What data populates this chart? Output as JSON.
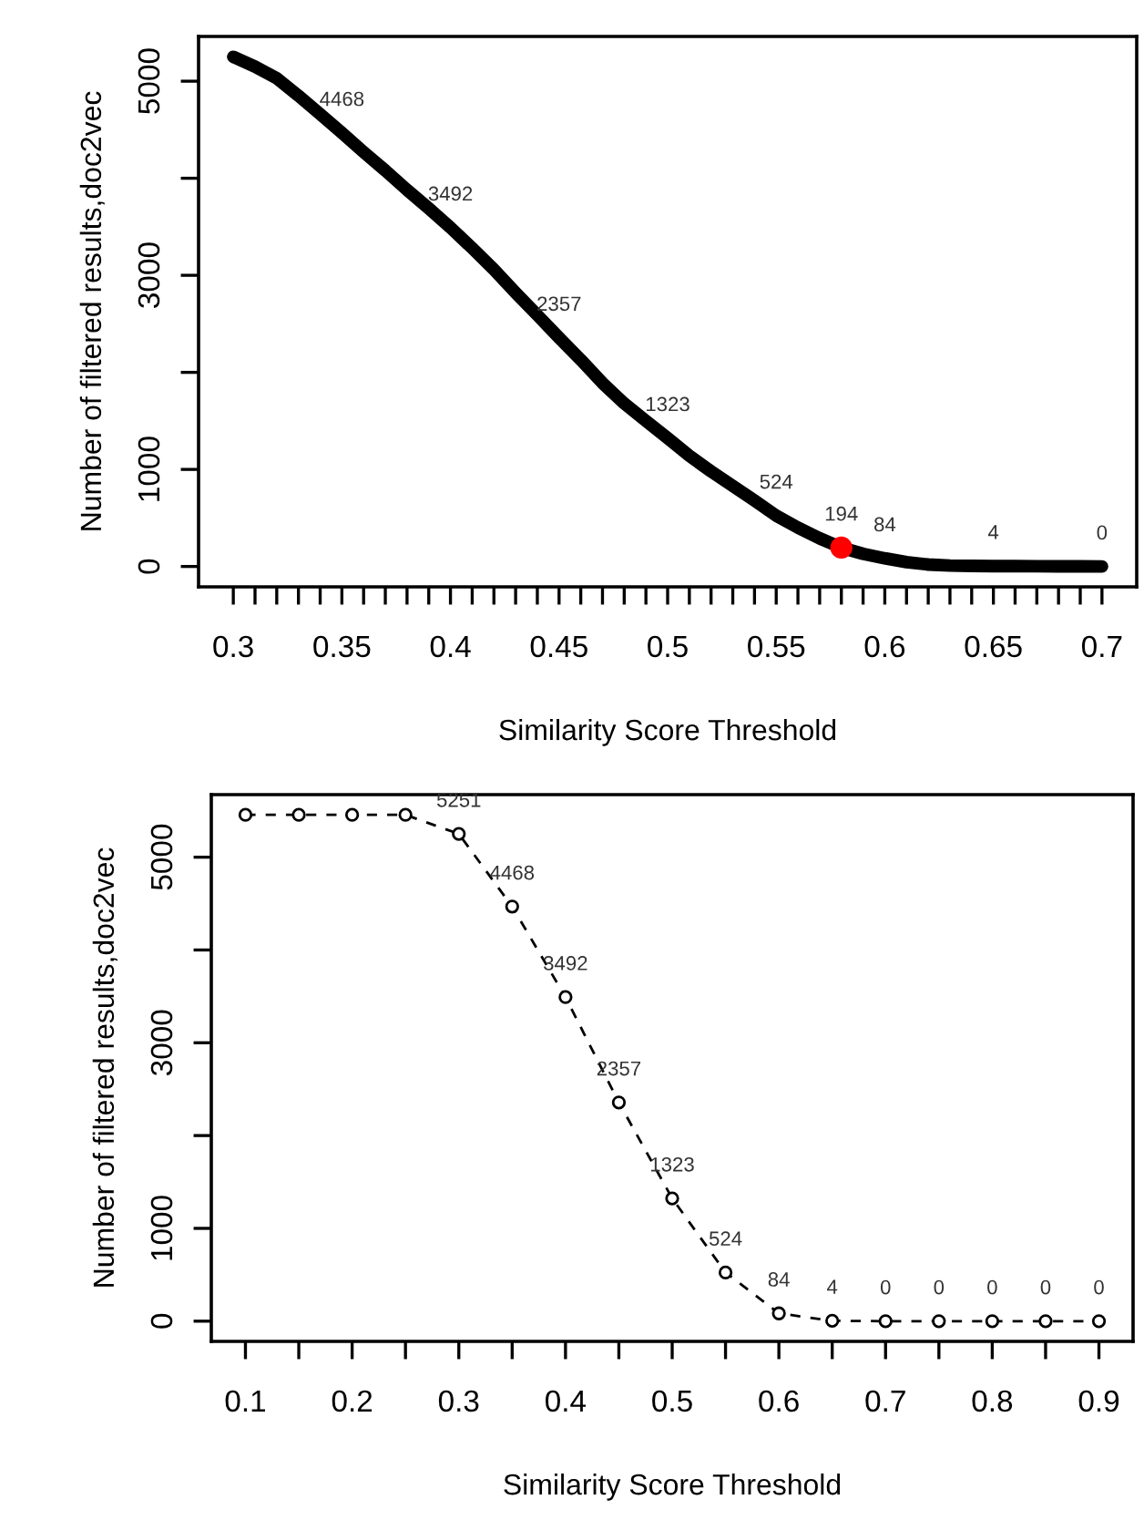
{
  "chart_data": [
    {
      "type": "line",
      "xlabel": "Similarity Score Threshold",
      "ylabel": "Number of filtered results,doc2vec",
      "xlim": [
        0.284,
        0.716
      ],
      "ylim": [
        -210,
        5461
      ],
      "xticks": [
        0.3,
        {
          "value": 0.31,
          "label": null
        },
        {
          "value": 0.32,
          "label": null
        },
        {
          "value": 0.33,
          "label": null
        },
        {
          "value": 0.34,
          "label": null
        },
        0.35,
        {
          "value": 0.36,
          "label": null
        },
        {
          "value": 0.37,
          "label": null
        },
        {
          "value": 0.38,
          "label": null
        },
        {
          "value": 0.39,
          "label": null
        },
        0.4,
        {
          "value": 0.41,
          "label": null
        },
        {
          "value": 0.42,
          "label": null
        },
        {
          "value": 0.43,
          "label": null
        },
        {
          "value": 0.44,
          "label": null
        },
        0.45,
        {
          "value": 0.46,
          "label": null
        },
        {
          "value": 0.47,
          "label": null
        },
        {
          "value": 0.48,
          "label": null
        },
        {
          "value": 0.49,
          "label": null
        },
        0.5,
        {
          "value": 0.51,
          "label": null
        },
        {
          "value": 0.52,
          "label": null
        },
        {
          "value": 0.53,
          "label": null
        },
        {
          "value": 0.54,
          "label": null
        },
        0.55,
        {
          "value": 0.56,
          "label": null
        },
        {
          "value": 0.57,
          "label": null
        },
        {
          "value": 0.58,
          "label": null
        },
        {
          "value": 0.59,
          "label": null
        },
        0.6,
        {
          "value": 0.61,
          "label": null
        },
        {
          "value": 0.62,
          "label": null
        },
        {
          "value": 0.63,
          "label": null
        },
        {
          "value": 0.64,
          "label": null
        },
        0.65,
        {
          "value": 0.66,
          "label": null
        },
        {
          "value": 0.67,
          "label": null
        },
        {
          "value": 0.68,
          "label": null
        },
        {
          "value": 0.69,
          "label": null
        },
        0.7
      ],
      "yticks": [
        0,
        {
          "value": 1000,
          "label": "1000"
        },
        {
          "value": 2000,
          "label": null
        },
        3000,
        {
          "value": 4000,
          "label": null
        },
        5000
      ],
      "series": [
        {
          "type": "line",
          "color": "#000000",
          "x": [
            0.3,
            0.31,
            0.32,
            0.33,
            0.34,
            0.35,
            0.36,
            0.37,
            0.38,
            0.39,
            0.4,
            0.41,
            0.42,
            0.43,
            0.44,
            0.45,
            0.46,
            0.47,
            0.48,
            0.49,
            0.5,
            0.51,
            0.52,
            0.53,
            0.54,
            0.55,
            0.56,
            0.57,
            0.58,
            0.59,
            0.6,
            0.61,
            0.62,
            0.63,
            0.64,
            0.65,
            0.66,
            0.67,
            0.68,
            0.69,
            0.7
          ],
          "values": [
            5251,
            5150,
            5030,
            4850,
            4660,
            4468,
            4270,
            4080,
            3880,
            3690,
            3492,
            3280,
            3060,
            2820,
            2590,
            2357,
            2130,
            1890,
            1680,
            1500,
            1323,
            1140,
            980,
            830,
            680,
            524,
            400,
            290,
            194,
            130,
            84,
            45,
            20,
            10,
            6,
            4,
            3,
            2,
            1,
            1,
            0
          ],
          "value_labels": [
            null,
            null,
            null,
            null,
            null,
            "4468",
            null,
            null,
            null,
            null,
            "3492",
            null,
            null,
            null,
            null,
            "2357",
            null,
            null,
            null,
            null,
            "1323",
            null,
            null,
            null,
            null,
            "524",
            null,
            null,
            null,
            null,
            "84",
            null,
            null,
            null,
            null,
            "4",
            null,
            null,
            null,
            null,
            "0"
          ]
        },
        {
          "type": "scatter",
          "color": "#ff0000",
          "x": [
            0.58
          ],
          "values": [
            194
          ],
          "value_labels": [
            "194"
          ]
        }
      ]
    },
    {
      "type": "line",
      "xlabel": "Similarity Score Threshold",
      "ylabel": "Number of filtered results,doc2vec",
      "xlim": [
        0.068,
        0.932
      ],
      "ylim": [
        -218,
        5674
      ],
      "xticks": [
        0.1,
        {
          "value": 0.15,
          "label": null
        },
        0.2,
        {
          "value": 0.25,
          "label": null
        },
        0.3,
        {
          "value": 0.35,
          "label": null
        },
        0.4,
        {
          "value": 0.45,
          "label": null
        },
        0.5,
        {
          "value": 0.55,
          "label": null
        },
        0.6,
        {
          "value": 0.65,
          "label": null
        },
        0.7,
        {
          "value": 0.75,
          "label": null
        },
        0.8,
        {
          "value": 0.85,
          "label": null
        },
        0.9
      ],
      "yticks": [
        0,
        1000,
        {
          "value": 2000,
          "label": null
        },
        3000,
        {
          "value": 4000,
          "label": null
        },
        5000
      ],
      "marker": "circle",
      "line_style": "dashed",
      "series": [
        {
          "color": "#000000",
          "x": [
            0.1,
            0.15,
            0.2,
            0.25,
            0.3,
            0.35,
            0.4,
            0.45,
            0.5,
            0.55,
            0.6,
            0.65,
            0.7,
            0.75,
            0.8,
            0.85,
            0.9
          ],
          "values": [
            5456,
            5456,
            5456,
            5456,
            5251,
            4468,
            3492,
            2357,
            1323,
            524,
            84,
            4,
            0,
            0,
            0,
            0,
            0
          ],
          "value_labels": [
            null,
            null,
            null,
            null,
            "5251",
            "4468",
            "3492",
            "2357",
            "1323",
            "524",
            "84",
            "4",
            "0",
            "0",
            "0",
            "0",
            "0"
          ]
        }
      ]
    }
  ]
}
